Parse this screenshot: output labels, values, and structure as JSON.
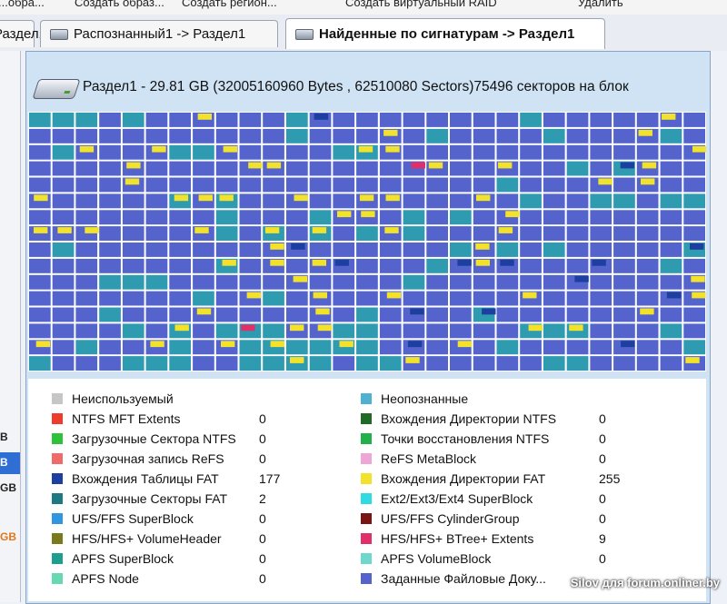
{
  "menu": {
    "items": [
      "...обра...",
      "Создать образ...",
      "Создать регион...",
      "Создать виртуальный RAID",
      "Удалить"
    ]
  },
  "tabs": [
    {
      "label": "Раздел1",
      "active": false
    },
    {
      "label": "Распознанный1 -> Раздел1",
      "active": false
    },
    {
      "label": "Найденные по сигнатурам -> Раздел1",
      "active": true
    }
  ],
  "sidebar": {
    "labels": [
      "B",
      "B",
      "GB",
      "GB"
    ]
  },
  "partition": {
    "title": "Раздел1 - 29.81 GB (32005160960 Bytes , 62510080 Sectors)75496 секторов на блок"
  },
  "block_map": {
    "columns": 29,
    "rows": 16,
    "colors": {
      "fat": "#5464cc",
      "unknown": "#2e9bb0",
      "fat_table": "#1c3fa0",
      "fat_dir": "#f2e22c",
      "btree": "#e0306a",
      "unused": "#c6c6c6"
    }
  },
  "legend": {
    "left": [
      {
        "label": "Неиспользуемый",
        "count": "",
        "color": "#c6c6c6"
      },
      {
        "label": "NTFS MFT Extents",
        "count": "0",
        "color": "#ee3b2b"
      },
      {
        "label": "Загрузочные Сектора NTFS",
        "count": "0",
        "color": "#2dc23a"
      },
      {
        "label": "Загрузочная запись ReFS",
        "count": "0",
        "color": "#f06a6a"
      },
      {
        "label": "Вхождения Таблицы FAT",
        "count": "177",
        "color": "#1c3fa0"
      },
      {
        "label": "Загрузочные Секторы FAT",
        "count": "2",
        "color": "#1d7a82"
      },
      {
        "label": "UFS/FFS SuperBlock",
        "count": "0",
        "color": "#3196e0"
      },
      {
        "label": "HFS/HFS+ VolumeHeader",
        "count": "0",
        "color": "#7a7a1c"
      },
      {
        "label": "APFS SuperBlock",
        "count": "0",
        "color": "#1e9f8e"
      },
      {
        "label": "APFS Node",
        "count": "0",
        "color": "#68d8b0"
      }
    ],
    "right": [
      {
        "label": "Неопознанные",
        "count": "",
        "color": "#4fb0cf"
      },
      {
        "label": "Вхождения Директории NTFS",
        "count": "0",
        "color": "#1f6a24"
      },
      {
        "label": "Точки восстановления NTFS",
        "count": "0",
        "color": "#22b04a"
      },
      {
        "label": "ReFS MetaBlock",
        "count": "0",
        "color": "#efa6d6"
      },
      {
        "label": "Вхождения Директории FAT",
        "count": "255",
        "color": "#f2e22c"
      },
      {
        "label": "Ext2/Ext3/Ext4 SuperBlock",
        "count": "0",
        "color": "#2edbe0"
      },
      {
        "label": "UFS/FFS CylinderGroup",
        "count": "0",
        "color": "#7a1414"
      },
      {
        "label": "HFS/HFS+ BTree+ Extents",
        "count": "9",
        "color": "#e0306a"
      },
      {
        "label": "APFS VolumeBlock",
        "count": "0",
        "color": "#6ed8cc"
      },
      {
        "label": "Заданные Файловые Доку...",
        "count": "",
        "color": "#5464cc"
      }
    ]
  },
  "watermark": "Silov для forum.onliner.by"
}
